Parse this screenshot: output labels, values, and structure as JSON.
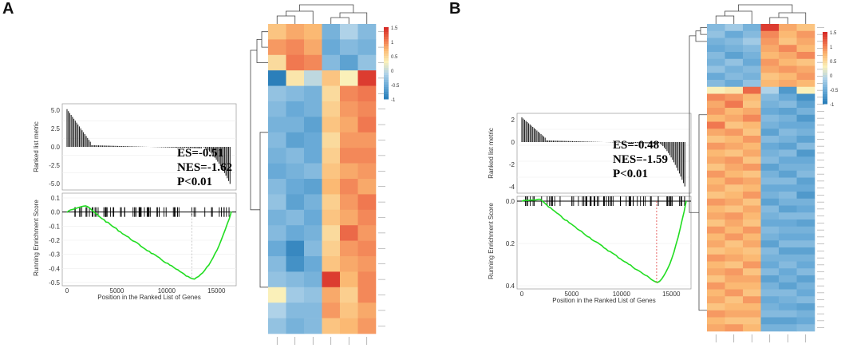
{
  "figure": {
    "panels": [
      {
        "letter": "A",
        "gsea": {
          "ranked_ylabel": "Ranked list metric",
          "ranked_yticks": [
            "5.0",
            "2.5",
            "0.0",
            "-2.5",
            "-5.0"
          ],
          "es_ylabel": "Running Enrichment Score",
          "es_yticks": [
            "0.1",
            "0.0",
            "-0.1",
            "-0.2",
            "-0.3",
            "-0.4",
            "-0.5"
          ],
          "xticks": [
            "0",
            "5000",
            "10000",
            "15000"
          ],
          "xlabel": "Position in the Ranked List of Genes",
          "es": "ES=-0.51",
          "nes": "NES=-1.62",
          "p": "P<0.01"
        },
        "heatmap": {
          "rows": 20,
          "cols": 6,
          "colorbar_ticks": [
            "1.5",
            "1",
            "0.5",
            "0",
            "-0.5",
            "-1"
          ],
          "values": [
            [
              0.6,
              0.8,
              0.7,
              -0.7,
              -0.3,
              -0.6
            ],
            [
              0.9,
              1.0,
              0.8,
              -0.8,
              -0.6,
              -0.7
            ],
            [
              0.4,
              1.1,
              1.0,
              -0.6,
              -0.9,
              -0.5
            ],
            [
              -1.3,
              0.3,
              -0.2,
              0.6,
              0.2,
              1.5
            ],
            [
              -0.5,
              -0.6,
              -0.7,
              0.4,
              1.0,
              1.1
            ],
            [
              -0.6,
              -0.8,
              -0.7,
              0.5,
              0.9,
              1.0
            ],
            [
              -0.7,
              -0.7,
              -0.9,
              0.6,
              0.8,
              1.1
            ],
            [
              -0.6,
              -0.9,
              -0.8,
              0.4,
              0.9,
              0.9
            ],
            [
              -0.7,
              -0.6,
              -0.8,
              0.5,
              1.0,
              1.0
            ],
            [
              -0.8,
              -0.7,
              -0.6,
              0.6,
              0.8,
              0.9
            ],
            [
              -0.6,
              -0.8,
              -0.9,
              0.7,
              1.0,
              0.8
            ],
            [
              -0.5,
              -0.9,
              -0.7,
              0.5,
              0.9,
              1.1
            ],
            [
              -0.7,
              -0.6,
              -0.8,
              0.6,
              0.8,
              1.0
            ],
            [
              -0.6,
              -0.8,
              -0.7,
              0.4,
              1.2,
              0.9
            ],
            [
              -0.8,
              -1.2,
              -0.6,
              0.5,
              0.9,
              1.0
            ],
            [
              -0.6,
              -1.1,
              -0.8,
              0.6,
              0.8,
              0.9
            ],
            [
              -0.5,
              -0.6,
              -0.7,
              1.5,
              0.7,
              1.0
            ],
            [
              0.2,
              -0.4,
              -0.5,
              0.8,
              0.5,
              1.0
            ],
            [
              -0.3,
              -0.6,
              -0.6,
              0.9,
              0.6,
              0.8
            ],
            [
              -0.5,
              -0.7,
              -0.6,
              0.6,
              0.7,
              0.9
            ]
          ]
        }
      },
      {
        "letter": "B",
        "gsea": {
          "ranked_ylabel": "Ranked list metric",
          "ranked_yticks": [
            "2",
            "0",
            "-2",
            "-4"
          ],
          "es_ylabel": "Running Enrichment Score",
          "es_yticks": [
            "0.0",
            "0.2",
            "0.4"
          ],
          "xticks": [
            "0",
            "5000",
            "10000",
            "15000"
          ],
          "xlabel": "Position in the Ranked List of Genes",
          "es": "ES=-0.48",
          "nes": "NES=-1.59",
          "p": "P<0.01"
        },
        "heatmap": {
          "rows": 44,
          "cols": 6,
          "colorbar_ticks": [
            "1.5",
            "1",
            "0.5",
            "0",
            "-0.5",
            "-1"
          ],
          "values": [
            [
              -0.6,
              -0.4,
              -0.7,
              1.5,
              0.8,
              0.6
            ],
            [
              -0.5,
              -0.8,
              -0.6,
              1.0,
              0.7,
              0.9
            ],
            [
              -0.7,
              -0.6,
              -0.4,
              0.9,
              0.6,
              0.8
            ],
            [
              -0.8,
              -0.7,
              -0.6,
              0.8,
              1.0,
              0.7
            ],
            [
              -0.6,
              -0.9,
              -0.7,
              0.7,
              0.8,
              1.0
            ],
            [
              -0.7,
              -0.5,
              -0.8,
              0.9,
              0.7,
              0.6
            ],
            [
              -0.5,
              -0.7,
              -0.6,
              0.8,
              0.9,
              0.8
            ],
            [
              -0.8,
              -0.6,
              -0.7,
              0.6,
              0.7,
              0.9
            ],
            [
              -0.6,
              -0.8,
              -0.5,
              0.7,
              0.8,
              0.7
            ],
            [
              0.2,
              0.3,
              1.2,
              -0.3,
              -1.0,
              0.2
            ],
            [
              1.0,
              0.9,
              0.7,
              -0.6,
              -0.8,
              -1.1
            ],
            [
              0.8,
              1.1,
              0.6,
              -0.7,
              -0.6,
              -0.9
            ],
            [
              0.9,
              0.7,
              0.8,
              -0.8,
              -0.9,
              -0.7
            ],
            [
              0.7,
              0.8,
              1.0,
              -0.6,
              -0.7,
              -1.0
            ],
            [
              1.1,
              0.6,
              0.7,
              -0.7,
              -0.8,
              -0.8
            ],
            [
              0.8,
              0.9,
              0.6,
              -0.9,
              -0.6,
              -0.7
            ],
            [
              0.6,
              0.7,
              0.9,
              -0.6,
              -0.7,
              -0.9
            ],
            [
              0.9,
              0.8,
              0.7,
              -0.8,
              -0.9,
              -0.6
            ],
            [
              0.7,
              0.6,
              0.8,
              -0.7,
              -0.6,
              -1.0
            ],
            [
              0.8,
              0.9,
              0.6,
              -0.6,
              -0.8,
              -0.8
            ],
            [
              0.6,
              0.8,
              0.9,
              -0.9,
              -0.7,
              -0.7
            ],
            [
              0.9,
              0.7,
              0.6,
              -0.7,
              -0.9,
              -0.6
            ],
            [
              0.7,
              0.9,
              0.8,
              -0.6,
              -0.6,
              -0.9
            ],
            [
              0.8,
              0.6,
              0.7,
              -0.8,
              -0.8,
              -0.8
            ],
            [
              0.6,
              0.7,
              0.9,
              -0.7,
              -0.6,
              -1.0
            ],
            [
              0.9,
              0.8,
              0.6,
              -0.9,
              -0.7,
              -0.7
            ],
            [
              0.7,
              0.6,
              0.8,
              -0.6,
              -0.9,
              -0.8
            ],
            [
              0.8,
              0.9,
              0.7,
              -0.7,
              -0.6,
              -0.6
            ],
            [
              0.6,
              0.8,
              0.6,
              -0.8,
              -0.8,
              -0.9
            ],
            [
              0.9,
              0.7,
              0.9,
              -0.6,
              -0.7,
              -0.7
            ],
            [
              0.7,
              0.9,
              0.7,
              -0.7,
              -0.8,
              -0.8
            ],
            [
              0.8,
              0.6,
              0.8,
              -0.9,
              -0.6,
              -0.6
            ],
            [
              0.6,
              0.7,
              0.6,
              -0.6,
              -0.9,
              -0.9
            ],
            [
              0.9,
              0.8,
              0.7,
              -0.7,
              -0.7,
              -0.7
            ],
            [
              0.7,
              0.6,
              0.9,
              -0.8,
              -0.6,
              -0.8
            ],
            [
              0.8,
              0.9,
              0.6,
              -0.6,
              -0.8,
              -0.6
            ],
            [
              0.6,
              0.8,
              0.8,
              -0.9,
              -0.7,
              -0.9
            ],
            [
              0.9,
              0.7,
              0.7,
              -0.7,
              -0.9,
              -0.7
            ],
            [
              0.7,
              0.9,
              0.6,
              -0.6,
              -0.6,
              -0.8
            ],
            [
              0.8,
              0.6,
              0.9,
              -0.8,
              -0.7,
              -0.6
            ],
            [
              0.6,
              0.7,
              0.7,
              -0.7,
              -0.8,
              -0.9
            ],
            [
              0.9,
              0.8,
              0.8,
              -0.6,
              -0.6,
              -0.7
            ],
            [
              0.7,
              0.6,
              0.6,
              -0.9,
              -0.9,
              -0.8
            ],
            [
              0.8,
              0.9,
              0.7,
              -0.7,
              -0.7,
              -0.6
            ]
          ]
        }
      }
    ]
  }
}
